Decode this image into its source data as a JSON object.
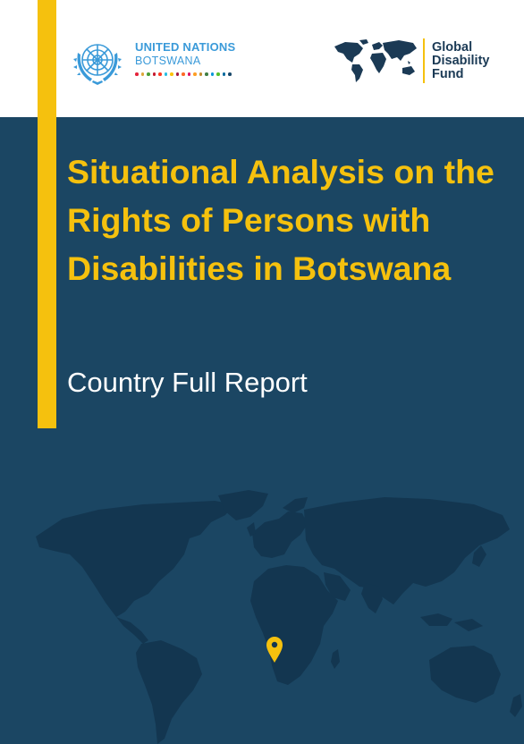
{
  "header": {
    "un_logo": {
      "org_name": "UNITED NATIONS",
      "country": "BOTSWANA",
      "emblem_icon": "un-emblem-icon",
      "sdg_colors": [
        "#e5243b",
        "#dda63a",
        "#4c9f38",
        "#c5192d",
        "#ff3a21",
        "#26bde2",
        "#fcc30b",
        "#a21942",
        "#fd6925",
        "#dd1367",
        "#fd9d24",
        "#bf8b2e",
        "#3f7e44",
        "#0a97d9",
        "#56c02b",
        "#00689d",
        "#19486a"
      ]
    },
    "gdf_logo": {
      "line1": "Global",
      "line2": "Disability",
      "line3": "Fund",
      "map_icon": "world-map-icon"
    }
  },
  "cover": {
    "title": "Situational Analysis on the Rights of Persons with Disabilities in Botswana",
    "subtitle": "Country Full Report",
    "map_icon": "world-map-icon",
    "pin_icon": "location-pin-icon"
  },
  "colors": {
    "background": "#1b4663",
    "accent": "#f5c10e",
    "un_blue": "#3a9ad9",
    "map_land": "#133650"
  }
}
